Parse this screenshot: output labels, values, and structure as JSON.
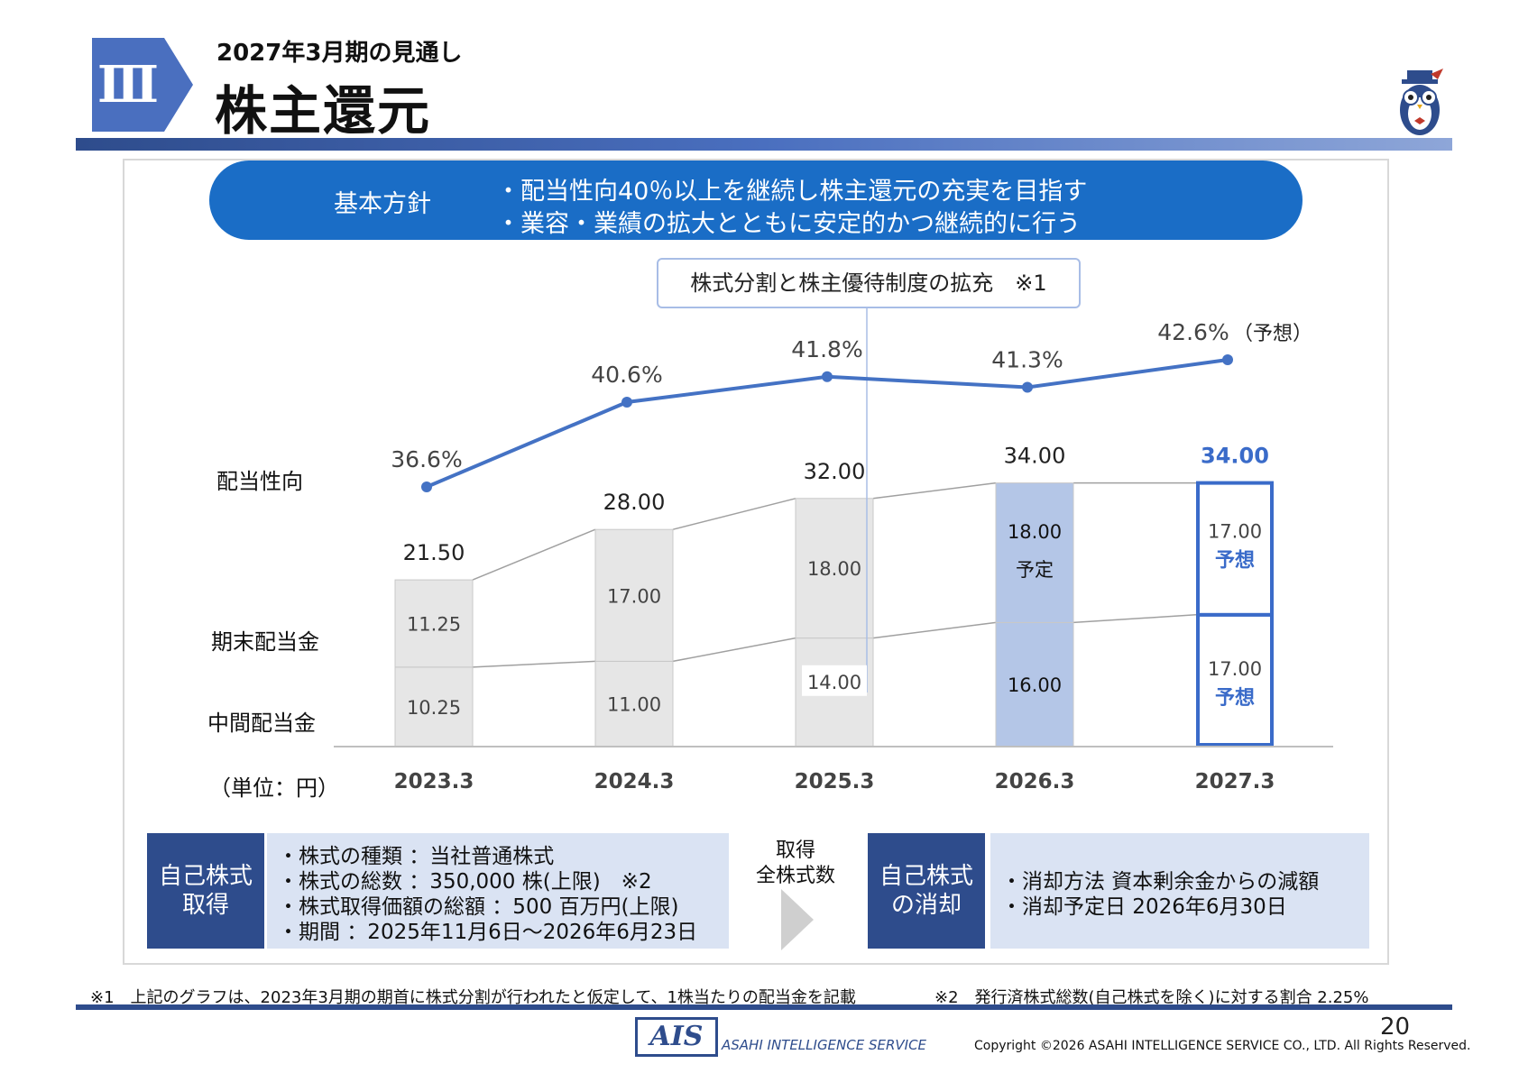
{
  "header": {
    "section_numeral": "Ⅲ",
    "subtitle": "2027年3月期の見通し",
    "title": "株主還元"
  },
  "policy": {
    "label": "基本方針",
    "lines": [
      "・配当性向40％以上を継続し株主還元の充実を目指す",
      "・業容・業績の拡大とともに安定的かつ継続的に行う"
    ]
  },
  "callout": "株式分割と株主優待制度の拡充　※1",
  "row_labels": {
    "payout": "配当性向",
    "year_end": "期末配当金",
    "interim": "中間配当金",
    "unit": "（単位：円）"
  },
  "chart_data": {
    "type": "bar",
    "stacked": true,
    "categories": [
      "2023.3",
      "2024.3",
      "2025.3",
      "2026.3",
      "2027.3"
    ],
    "series": [
      {
        "key": "interim",
        "values": [
          10.25,
          11.0,
          14.0,
          16.0,
          17.0
        ],
        "labels": [
          "10.25",
          "11.00",
          "14.00",
          "16.00",
          "17.00"
        ]
      },
      {
        "key": "year_end",
        "values": [
          11.25,
          17.0,
          18.0,
          18.0,
          17.0
        ],
        "labels": [
          "11.25",
          "17.00",
          "18.00",
          "18.00",
          "17.00"
        ]
      }
    ],
    "totals": [
      21.5,
      28.0,
      32.0,
      34.0,
      34.0
    ],
    "total_labels": [
      "21.50",
      "28.00",
      "32.00",
      "34.00",
      "34.00"
    ],
    "payout_ratio": {
      "values": [
        36.6,
        40.6,
        41.8,
        41.3,
        42.6
      ],
      "labels": [
        "36.6%",
        "40.6%",
        "41.8%",
        "41.3%",
        "42.6%"
      ],
      "forecast_suffix": "（予想）"
    },
    "notes": {
      "planned": "予定",
      "forecast": "予想"
    },
    "colors": {
      "past_bar": "#e6e6e6",
      "planned_bar": "#b4c6e7",
      "forecast_border": "#3a6bc9",
      "line": "#4472c4",
      "forecast_text": "#3a6bc9"
    }
  },
  "buyback": {
    "label": "自己株式\n取得",
    "lines": [
      "・株式の種類 ：当社普通株式",
      "・株式の総数 ：350,000 株(上限)　※2",
      "・株式取得価額の総額 ：500 百万円(上限)",
      "・期間 ：2025年11月6日～2026年6月23日"
    ]
  },
  "arrow_caption": "取得\n全株式数",
  "retirement": {
    "label": "自己株式\nの消却",
    "lines": [
      "・消却方法 資本剰余金からの減額",
      "・消却予定日 2026年6月30日"
    ]
  },
  "footnotes": {
    "note1": "※1　上記のグラフは、2023年3月期の期首に株式分割が行われたと仮定して、1株当たりの配当金を記載",
    "note2": "※2　発行済株式総数(自己株式を除く)に対する割合 2.25%"
  },
  "footer": {
    "logo": "AIS",
    "company": "ASAHI INTELLIGENCE SERVICE",
    "page": "20",
    "copyright": "Copyright ©2026 ASAHI INTELLIGENCE SERVICE CO., LTD. All Rights Reserved."
  },
  "theme": {
    "navy": "#2e4c8c",
    "blue": "#1a6dc6",
    "light_panel": "#dae3f3"
  }
}
